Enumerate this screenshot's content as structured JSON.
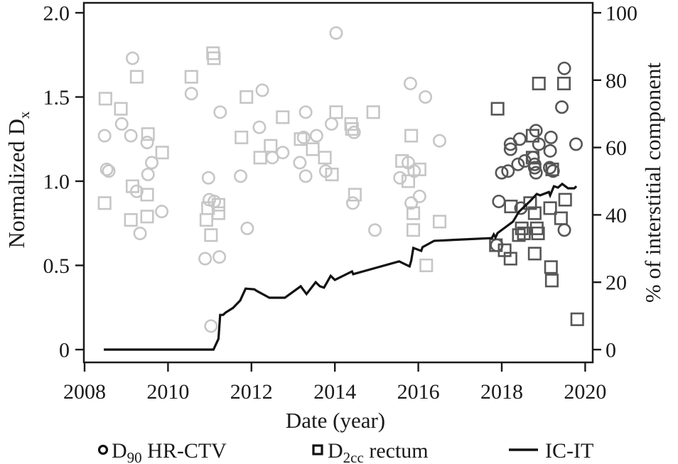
{
  "chart_data": {
    "type": "scatter",
    "xlabel": "Date (year)",
    "ylabel_left_base": "Normalized D",
    "ylabel_left_sub": "x",
    "ylabel_right": "% of interstitial component",
    "xlim": [
      2007.98,
      2020.2
    ],
    "ylim_left": [
      -0.08,
      2.06
    ],
    "ylim_right": [
      -4,
      103
    ],
    "grid": false,
    "legend_position": "bottom",
    "x_ticks": [
      2008,
      2010,
      2012,
      2014,
      2016,
      2018,
      2020
    ],
    "x_tick_labels": [
      "2008",
      "2010",
      "2012",
      "2014",
      "2016",
      "2018",
      "2020"
    ],
    "y_left_ticks": [
      0,
      0.5,
      1.0,
      1.5,
      2.0
    ],
    "y_left_tick_labels": [
      "0",
      "0.5",
      "1.0",
      "1.5",
      "2.0"
    ],
    "y_right_ticks": [
      0,
      20,
      40,
      60,
      80,
      100
    ],
    "y_right_tick_labels": [
      "0",
      "20",
      "40",
      "60",
      "80",
      "100"
    ],
    "colors": {
      "early": "#c6c6c6",
      "recent": "#565656",
      "line": "#121212"
    },
    "series": [
      {
        "name": "D90 HR-CTV (early era)",
        "marker": "circle",
        "axis": "left",
        "color_key": "early",
        "points": [
          [
            2009.15,
            1.73
          ],
          [
            2008.89,
            1.34
          ],
          [
            2008.48,
            1.27
          ],
          [
            2009.11,
            1.27
          ],
          [
            2009.5,
            1.23
          ],
          [
            2009.61,
            1.11
          ],
          [
            2008.53,
            1.07
          ],
          [
            2008.58,
            1.06
          ],
          [
            2009.52,
            1.04
          ],
          [
            2010.97,
            1.02
          ],
          [
            2010.56,
            1.52
          ],
          [
            2011.25,
            1.41
          ],
          [
            2009.25,
            0.94
          ],
          [
            2009.85,
            0.82
          ],
          [
            2009.33,
            0.69
          ],
          [
            2010.99,
            0.89
          ],
          [
            2011.11,
            0.88
          ],
          [
            2011.9,
            0.72
          ],
          [
            2010.89,
            0.54
          ],
          [
            2011.23,
            0.55
          ],
          [
            2011.03,
            0.14
          ],
          [
            2011.74,
            1.03
          ],
          [
            2012.19,
            1.32
          ],
          [
            2012.26,
            1.54
          ],
          [
            2013.3,
            1.41
          ],
          [
            2013.92,
            1.34
          ],
          [
            2014.03,
            1.88
          ],
          [
            2013.56,
            1.27
          ],
          [
            2013.25,
            1.26
          ],
          [
            2012.75,
            1.17
          ],
          [
            2012.5,
            1.14
          ],
          [
            2013.16,
            1.11
          ],
          [
            2013.78,
            1.06
          ],
          [
            2013.3,
            1.03
          ],
          [
            2014.46,
            1.29
          ],
          [
            2014.43,
            0.87
          ],
          [
            2014.96,
            0.71
          ],
          [
            2015.81,
            1.58
          ],
          [
            2016.17,
            1.5
          ],
          [
            2016.51,
            1.24
          ],
          [
            2015.76,
            1.11
          ],
          [
            2015.56,
            1.02
          ],
          [
            2015.9,
            1.06
          ],
          [
            2016.03,
            0.91
          ],
          [
            2015.83,
            0.87
          ]
        ]
      },
      {
        "name": "D90 HR-CTV (recent era)",
        "marker": "circle",
        "axis": "left",
        "color_key": "recent",
        "points": [
          [
            2019.5,
            1.67
          ],
          [
            2019.44,
            1.44
          ],
          [
            2018.82,
            1.3
          ],
          [
            2019.18,
            1.26
          ],
          [
            2018.43,
            1.25
          ],
          [
            2018.21,
            1.22
          ],
          [
            2018.89,
            1.22
          ],
          [
            2019.78,
            1.22
          ],
          [
            2018.21,
            1.19
          ],
          [
            2019.16,
            1.18
          ],
          [
            2018.75,
            1.14
          ],
          [
            2018.55,
            1.12
          ],
          [
            2018.39,
            1.1
          ],
          [
            2018.79,
            1.1
          ],
          [
            2018.79,
            1.08
          ],
          [
            2019.15,
            1.08
          ],
          [
            2018.15,
            1.06
          ],
          [
            2019.23,
            1.06
          ],
          [
            2018.82,
            1.05
          ],
          [
            2018.0,
            1.05
          ],
          [
            2017.93,
            0.88
          ],
          [
            2018.46,
            0.84
          ],
          [
            2019.5,
            0.71
          ],
          [
            2017.88,
            0.62
          ]
        ]
      },
      {
        "name": "D2cc rectum (early era)",
        "marker": "square",
        "axis": "left",
        "color_key": "early",
        "points": [
          [
            2008.5,
            1.49
          ],
          [
            2008.87,
            1.43
          ],
          [
            2009.25,
            1.62
          ],
          [
            2009.52,
            1.28
          ],
          [
            2009.86,
            1.17
          ],
          [
            2010.56,
            1.62
          ],
          [
            2011.08,
            1.76
          ],
          [
            2011.1,
            1.73
          ],
          [
            2011.88,
            1.5
          ],
          [
            2011.76,
            1.26
          ],
          [
            2009.15,
            0.97
          ],
          [
            2009.5,
            0.92
          ],
          [
            2008.48,
            0.87
          ],
          [
            2009.11,
            0.77
          ],
          [
            2009.5,
            0.79
          ],
          [
            2010.96,
            0.84
          ],
          [
            2011.21,
            0.86
          ],
          [
            2011.21,
            0.81
          ],
          [
            2010.92,
            0.77
          ],
          [
            2011.03,
            0.68
          ],
          [
            2012.21,
            1.14
          ],
          [
            2012.46,
            1.21
          ],
          [
            2012.75,
            1.38
          ],
          [
            2013.18,
            1.25
          ],
          [
            2013.47,
            1.19
          ],
          [
            2014.03,
            1.41
          ],
          [
            2014.39,
            1.34
          ],
          [
            2014.41,
            1.31
          ],
          [
            2014.92,
            1.41
          ],
          [
            2013.76,
            1.14
          ],
          [
            2013.93,
            1.04
          ],
          [
            2014.48,
            0.92
          ],
          [
            2015.61,
            1.12
          ],
          [
            2015.76,
            1.0
          ],
          [
            2016.03,
            1.07
          ],
          [
            2015.83,
            1.27
          ],
          [
            2015.88,
            0.81
          ],
          [
            2015.88,
            0.71
          ],
          [
            2016.19,
            0.5
          ],
          [
            2016.51,
            0.76
          ]
        ]
      },
      {
        "name": "D2cc rectum (recent era)",
        "marker": "square",
        "axis": "left",
        "color_key": "recent",
        "points": [
          [
            2018.89,
            1.58
          ],
          [
            2019.49,
            1.58
          ],
          [
            2017.9,
            1.43
          ],
          [
            2018.74,
            1.27
          ],
          [
            2018.74,
            1.14
          ],
          [
            2019.21,
            1.07
          ],
          [
            2018.22,
            0.85
          ],
          [
            2018.68,
            0.87
          ],
          [
            2018.79,
            0.81
          ],
          [
            2019.16,
            0.84
          ],
          [
            2019.52,
            0.89
          ],
          [
            2019.42,
            0.78
          ],
          [
            2018.48,
            0.72
          ],
          [
            2018.41,
            0.68
          ],
          [
            2018.53,
            0.69
          ],
          [
            2018.84,
            0.72
          ],
          [
            2018.87,
            0.69
          ],
          [
            2017.86,
            0.62
          ],
          [
            2018.07,
            0.59
          ],
          [
            2018.21,
            0.54
          ],
          [
            2018.79,
            0.57
          ],
          [
            2019.18,
            0.49
          ],
          [
            2019.2,
            0.41
          ],
          [
            2019.81,
            0.18
          ]
        ]
      },
      {
        "name": "IC-IT",
        "marker": "line",
        "axis": "right",
        "color_key": "line",
        "points": [
          [
            2008.46,
            0
          ],
          [
            2011.09,
            0
          ],
          [
            2011.21,
            3.2
          ],
          [
            2011.25,
            10.3
          ],
          [
            2011.32,
            10.3
          ],
          [
            2011.38,
            11.0
          ],
          [
            2011.56,
            12.4
          ],
          [
            2011.73,
            14.6
          ],
          [
            2011.86,
            18.1
          ],
          [
            2012.07,
            17.9
          ],
          [
            2012.12,
            17.5
          ],
          [
            2012.43,
            15.4
          ],
          [
            2012.8,
            15.4
          ],
          [
            2013.18,
            18.8
          ],
          [
            2013.32,
            16.5
          ],
          [
            2013.54,
            20.0
          ],
          [
            2013.64,
            18.8
          ],
          [
            2013.74,
            18.4
          ],
          [
            2013.9,
            21.9
          ],
          [
            2014.0,
            20.7
          ],
          [
            2014.41,
            23.2
          ],
          [
            2014.44,
            22.4
          ],
          [
            2015.54,
            26.2
          ],
          [
            2015.79,
            24.7
          ],
          [
            2015.83,
            26.4
          ],
          [
            2015.88,
            30.2
          ],
          [
            2016.07,
            29.3
          ],
          [
            2016.1,
            30.4
          ],
          [
            2016.38,
            32.3
          ],
          [
            2017.76,
            33.1
          ],
          [
            2017.81,
            34.2
          ],
          [
            2017.85,
            33.3
          ],
          [
            2017.9,
            34.6
          ],
          [
            2018.27,
            38.0
          ],
          [
            2018.41,
            40.9
          ],
          [
            2018.68,
            44.1
          ],
          [
            2018.84,
            46.2
          ],
          [
            2018.92,
            45.8
          ],
          [
            2019.13,
            46.8
          ],
          [
            2019.16,
            45.8
          ],
          [
            2019.25,
            48.5
          ],
          [
            2019.35,
            48.1
          ],
          [
            2019.45,
            49.2
          ],
          [
            2019.59,
            47.9
          ],
          [
            2019.74,
            47.9
          ],
          [
            2019.79,
            48.5
          ]
        ]
      }
    ],
    "legend": [
      {
        "marker": "circle",
        "pre": "D",
        "sub": "90",
        "post": " HR-CTV"
      },
      {
        "marker": "square",
        "pre": "D",
        "sub": "2cc",
        "post": " rectum"
      },
      {
        "marker": "line",
        "pre": "IC-IT",
        "sub": "",
        "post": ""
      }
    ]
  }
}
